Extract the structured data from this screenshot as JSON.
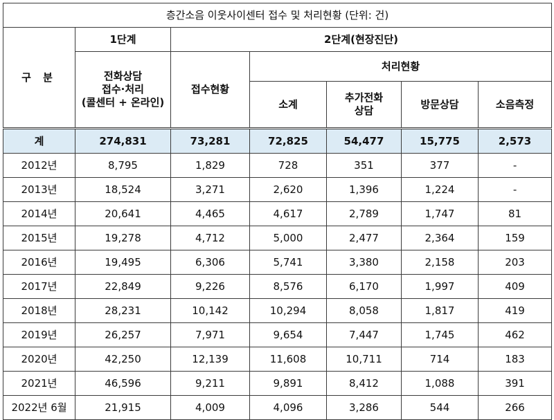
{
  "title": "층간소음 이웃사이센터 접수 및 처리현황 (단위: 건)",
  "headers": {
    "category": "구  분",
    "stage1": "1단계",
    "stage2": "2단계(현장진단)",
    "processing": "처리현황",
    "phone_line1": "전화상담",
    "phone_line2": "접수·처리",
    "phone_line3": "(콜센터 + 온라인)",
    "received": "접수현황",
    "subtotal": "소계",
    "extra_phone_line1": "추가전화",
    "extra_phone_line2": "상담",
    "visit": "방문상담",
    "measure": "소음측정"
  },
  "total": {
    "label": "계",
    "values": [
      "274,831",
      "73,281",
      "72,825",
      "54,477",
      "15,775",
      "2,573"
    ]
  },
  "rows": [
    {
      "label": "2012년",
      "values": [
        "8,795",
        "1,829",
        "728",
        "351",
        "377",
        "-"
      ]
    },
    {
      "label": "2013년",
      "values": [
        "18,524",
        "3,271",
        "2,620",
        "1,396",
        "1,224",
        "-"
      ]
    },
    {
      "label": "2014년",
      "values": [
        "20,641",
        "4,465",
        "4,617",
        "2,789",
        "1,747",
        "81"
      ]
    },
    {
      "label": "2015년",
      "values": [
        "19,278",
        "4,712",
        "5,000",
        "2,477",
        "2,364",
        "159"
      ]
    },
    {
      "label": "2016년",
      "values": [
        "19,495",
        "6,306",
        "5,741",
        "3,380",
        "2,158",
        "203"
      ]
    },
    {
      "label": "2017년",
      "values": [
        "22,849",
        "9,226",
        "8,576",
        "6,170",
        "1,997",
        "409"
      ]
    },
    {
      "label": "2018년",
      "values": [
        "28,231",
        "10,142",
        "10,294",
        "8,058",
        "1,817",
        "419"
      ]
    },
    {
      "label": "2019년",
      "values": [
        "26,257",
        "7,971",
        "9,654",
        "7,447",
        "1,745",
        "462"
      ]
    },
    {
      "label": "2020년",
      "values": [
        "42,250",
        "12,139",
        "11,608",
        "10,711",
        "714",
        "183"
      ]
    },
    {
      "label": "2021년",
      "values": [
        "46,596",
        "9,211",
        "9,891",
        "8,412",
        "1,088",
        "391"
      ]
    },
    {
      "label": "2022년 6월",
      "values": [
        "21,915",
        "4,009",
        "4,096",
        "3,286",
        "544",
        "266"
      ]
    }
  ]
}
